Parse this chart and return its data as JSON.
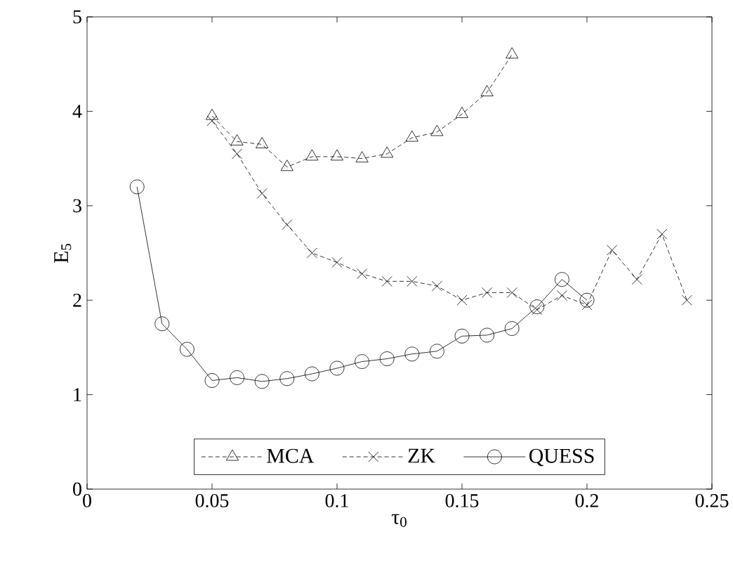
{
  "chart_data": {
    "type": "line",
    "xlabel": "τ$_{0}$",
    "ylabel": "E$_{5}$",
    "xlim": [
      0,
      0.25
    ],
    "ylim": [
      0,
      5
    ],
    "xticks": [
      0,
      0.05,
      0.1,
      0.15,
      0.2,
      0.25
    ],
    "yticks": [
      0,
      1,
      2,
      3,
      4,
      5
    ],
    "legend": "bottom",
    "grid": false,
    "series": [
      {
        "name": "MCA",
        "color": "#000000",
        "marker": "triangle",
        "line_style": "dashed",
        "x": [
          0.05,
          0.06,
          0.07,
          0.08,
          0.09,
          0.1,
          0.11,
          0.12,
          0.13,
          0.14,
          0.15,
          0.16,
          0.17
        ],
        "values": [
          3.95,
          3.68,
          3.65,
          3.41,
          3.52,
          3.52,
          3.5,
          3.55,
          3.72,
          3.78,
          3.97,
          4.2,
          4.6
        ]
      },
      {
        "name": "ZK",
        "color": "#000000",
        "marker": "cross",
        "line_style": "dashed",
        "x": [
          0.05,
          0.06,
          0.07,
          0.08,
          0.09,
          0.1,
          0.11,
          0.12,
          0.13,
          0.14,
          0.15,
          0.16,
          0.17,
          0.18,
          0.19,
          0.2,
          0.21,
          0.22,
          0.23,
          0.24
        ],
        "values": [
          3.9,
          3.55,
          3.13,
          2.8,
          2.5,
          2.4,
          2.28,
          2.2,
          2.2,
          2.15,
          2.0,
          2.08,
          2.08,
          1.9,
          2.05,
          1.95,
          2.53,
          2.22,
          2.7,
          2.0
        ]
      },
      {
        "name": "QUESS",
        "color": "#000000",
        "marker": "circle",
        "line_style": "solid",
        "x": [
          0.02,
          0.03,
          0.04,
          0.05,
          0.06,
          0.07,
          0.08,
          0.09,
          0.1,
          0.11,
          0.12,
          0.13,
          0.14,
          0.15,
          0.16,
          0.17,
          0.18,
          0.19,
          0.2
        ],
        "values": [
          3.2,
          1.75,
          1.48,
          1.15,
          1.18,
          1.14,
          1.17,
          1.22,
          1.28,
          1.35,
          1.38,
          1.43,
          1.46,
          1.62,
          1.63,
          1.7,
          1.93,
          2.22,
          2.0
        ]
      }
    ]
  }
}
